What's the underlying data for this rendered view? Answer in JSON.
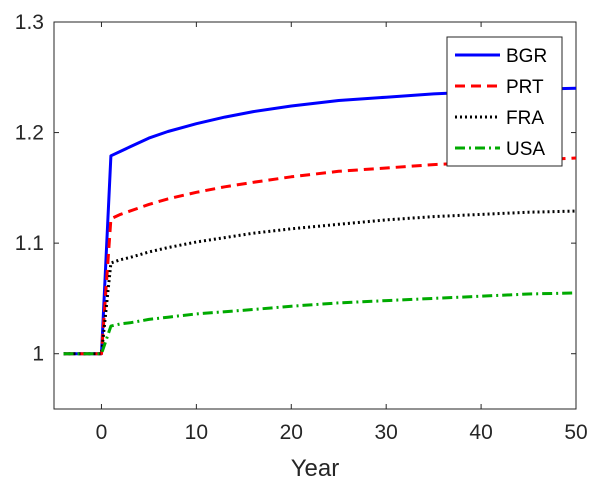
{
  "chart_data": {
    "type": "line",
    "title": "",
    "xlabel": "Year",
    "ylabel": "",
    "xlim": [
      -5,
      50
    ],
    "ylim": [
      0.95,
      1.3
    ],
    "xticks": [
      0,
      10,
      20,
      30,
      40,
      50
    ],
    "yticks": [
      1,
      1.1,
      1.2,
      1.3
    ],
    "xtick_labels": [
      "0",
      "10",
      "20",
      "30",
      "40",
      "50"
    ],
    "ytick_labels": [
      "1",
      "1.1",
      "1.2",
      "1.3"
    ],
    "grid": false,
    "legend_position": "top-right",
    "series": [
      {
        "name": "BGR",
        "color": "#0000ff",
        "style": "solid",
        "x": [
          -4,
          0,
          1,
          2,
          3,
          5,
          7,
          10,
          13,
          16,
          20,
          25,
          30,
          35,
          40,
          45,
          50
        ],
        "y": [
          1.0,
          1.0,
          1.179,
          1.183,
          1.187,
          1.195,
          1.201,
          1.208,
          1.214,
          1.219,
          1.224,
          1.229,
          1.232,
          1.235,
          1.237,
          1.239,
          1.24
        ]
      },
      {
        "name": "PRT",
        "color": "#ff0000",
        "style": "dashed",
        "x": [
          -4,
          0,
          1,
          2,
          3,
          5,
          7,
          10,
          13,
          16,
          20,
          25,
          30,
          35,
          40,
          45,
          50
        ],
        "y": [
          1.0,
          1.0,
          1.122,
          1.126,
          1.129,
          1.135,
          1.14,
          1.146,
          1.151,
          1.155,
          1.16,
          1.165,
          1.168,
          1.171,
          1.173,
          1.175,
          1.177
        ]
      },
      {
        "name": "FRA",
        "color": "#000000",
        "style": "dotted",
        "x": [
          -4,
          0,
          1,
          2,
          3,
          5,
          7,
          10,
          13,
          16,
          20,
          25,
          30,
          35,
          40,
          45,
          50
        ],
        "y": [
          1.0,
          1.0,
          1.082,
          1.085,
          1.087,
          1.092,
          1.096,
          1.101,
          1.105,
          1.109,
          1.113,
          1.117,
          1.121,
          1.124,
          1.126,
          1.128,
          1.129
        ]
      },
      {
        "name": "USA",
        "color": "#00aa00",
        "style": "dashdot",
        "x": [
          -4,
          0,
          1,
          2,
          3,
          5,
          7,
          10,
          13,
          16,
          20,
          25,
          30,
          35,
          40,
          45,
          50
        ],
        "y": [
          1.0,
          1.0,
          1.025,
          1.027,
          1.028,
          1.031,
          1.033,
          1.036,
          1.038,
          1.04,
          1.043,
          1.046,
          1.048,
          1.05,
          1.052,
          1.054,
          1.055
        ]
      }
    ]
  }
}
